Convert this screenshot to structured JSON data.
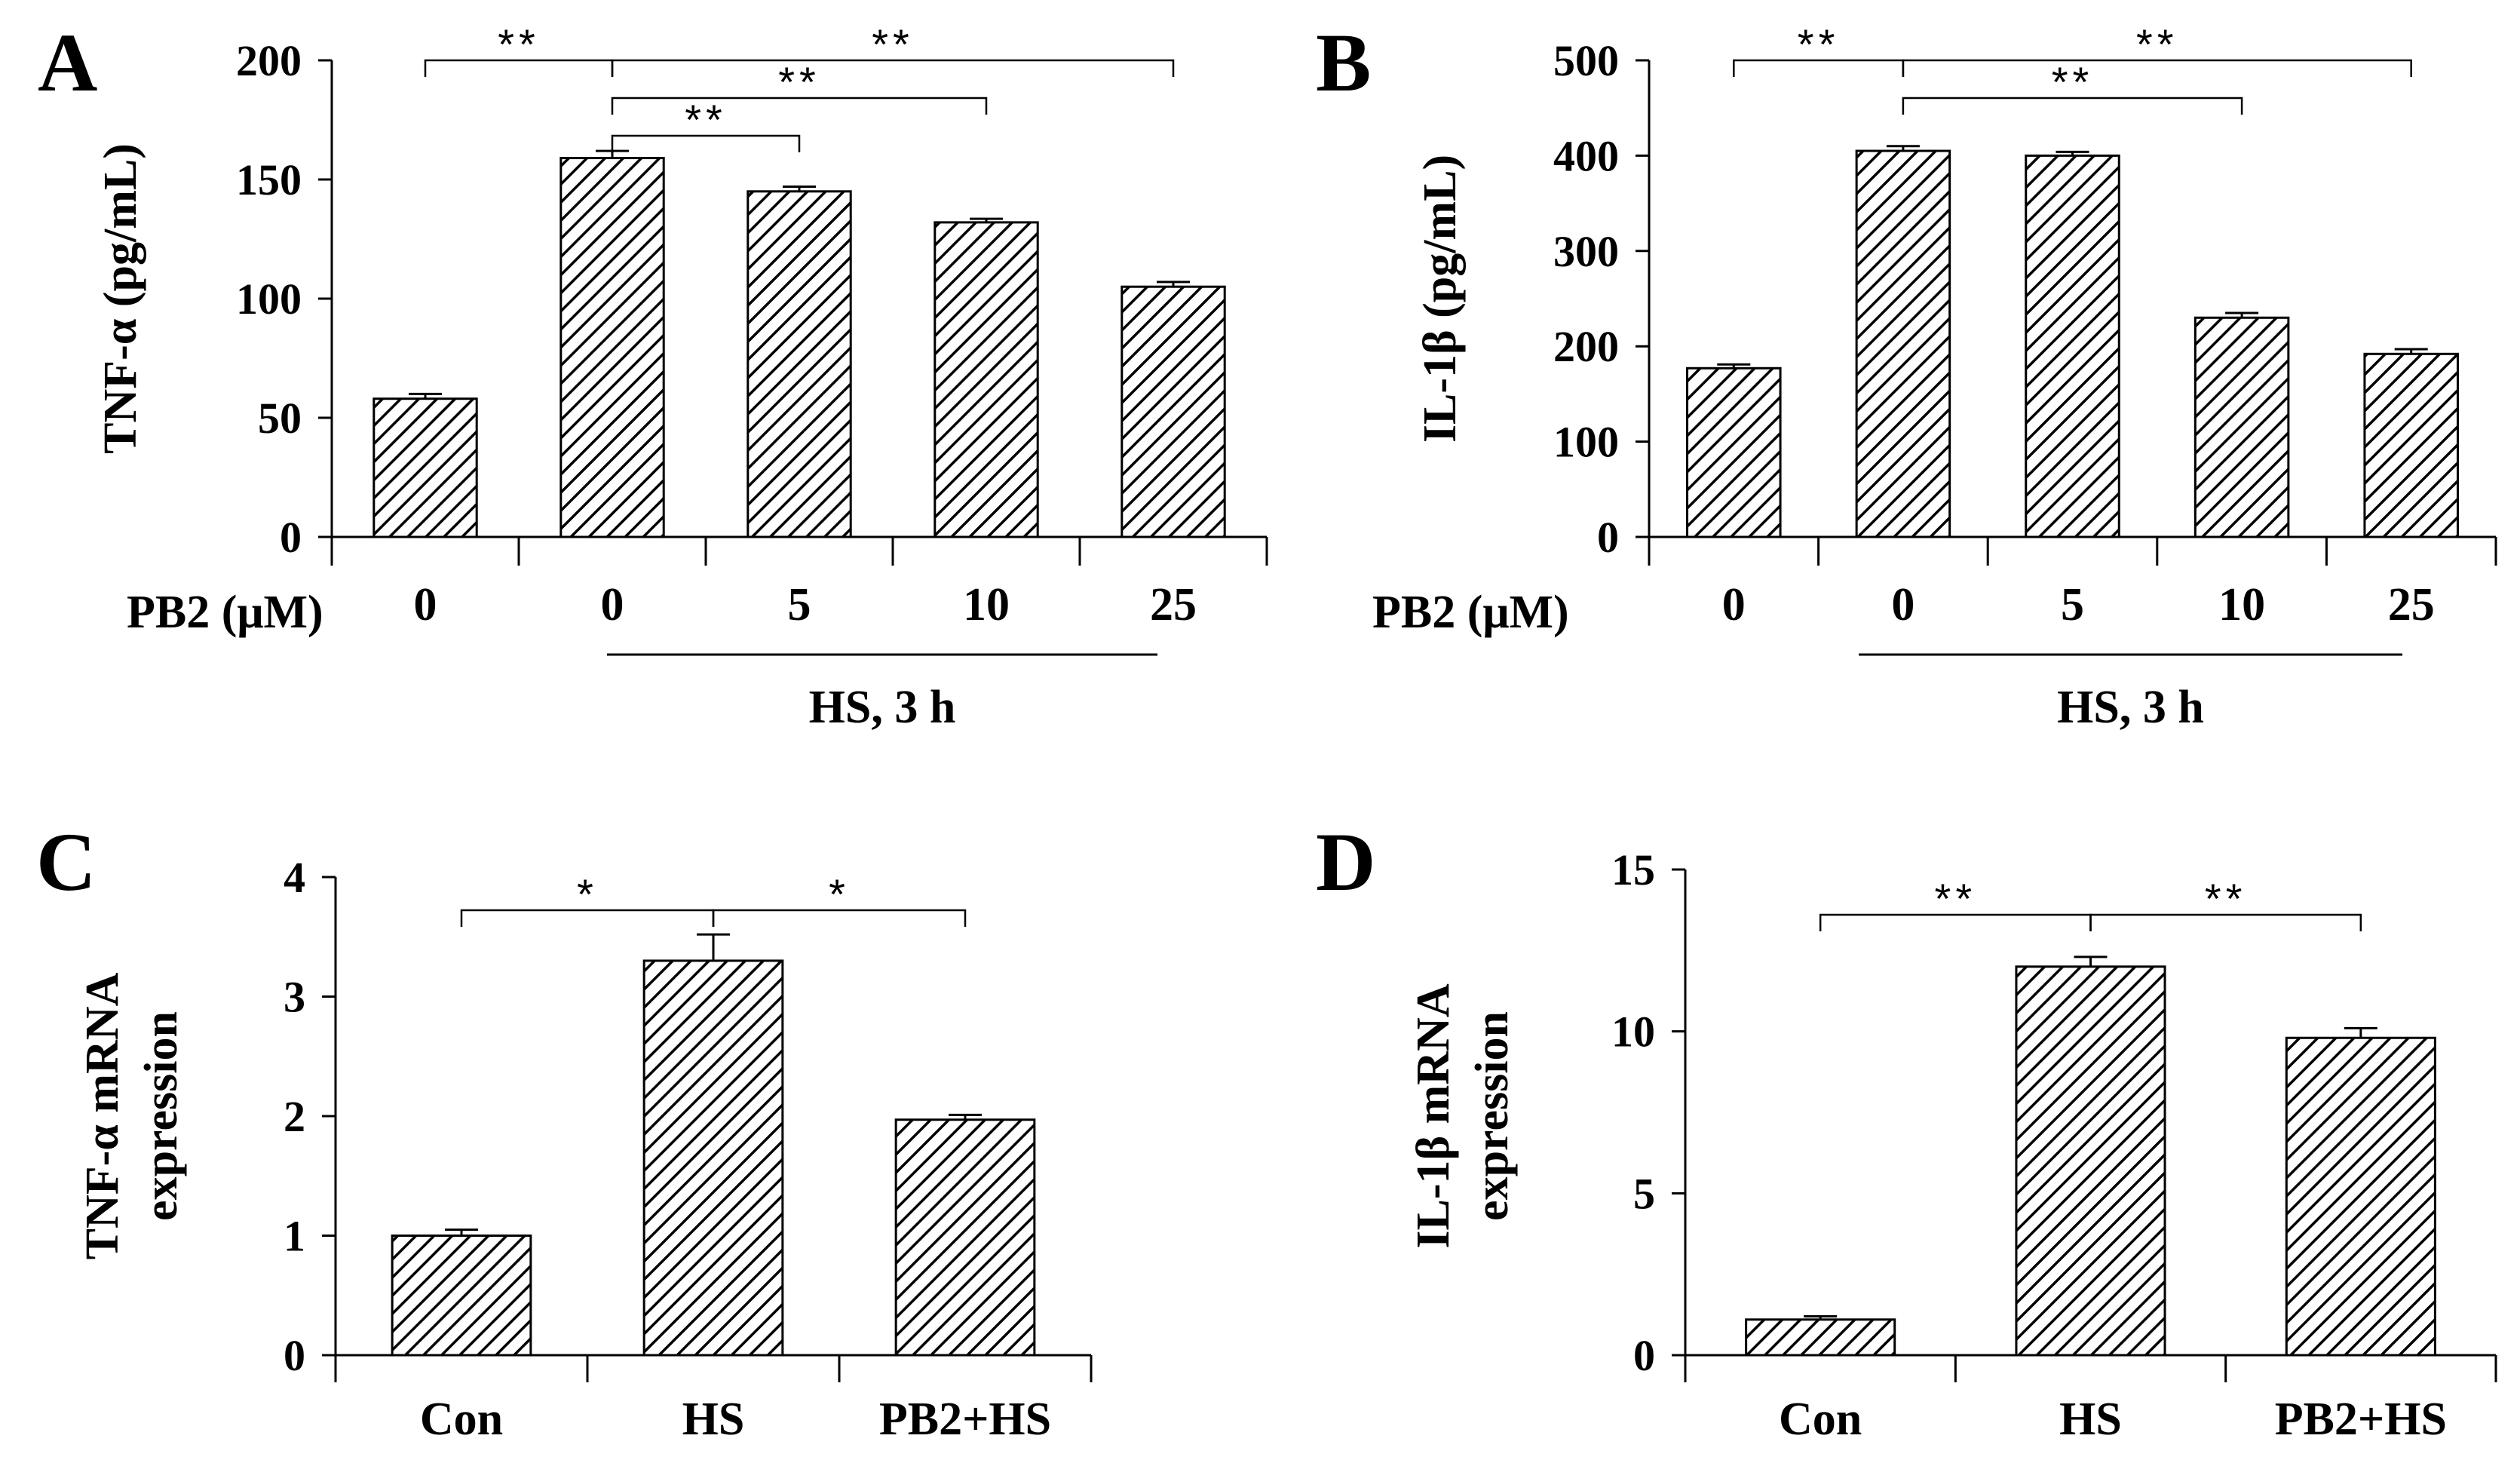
{
  "chart_data": [
    {
      "panel": "A",
      "type": "bar",
      "ylabel": "TNF-α (pg/mL)",
      "ylim": [
        0,
        200
      ],
      "yticks": [
        0,
        50,
        100,
        150,
        200
      ],
      "x_prefix_label": "PB2 (μM)",
      "categories": [
        "0",
        "0",
        "5",
        "10",
        "25"
      ],
      "values": [
        58,
        159,
        145,
        132,
        105
      ],
      "errors": [
        2,
        3,
        2,
        1.5,
        2
      ],
      "pattern": "diagonal-hatch",
      "treatment_label": "HS, 3 h",
      "treatment_span": [
        1,
        4
      ],
      "significance": [
        {
          "from": 0,
          "to": 1,
          "label": "**",
          "level": 0
        },
        {
          "from": 1,
          "to": 4,
          "label": "**",
          "level": 0
        },
        {
          "from": 1,
          "to": 3,
          "label": "**",
          "level": 1
        },
        {
          "from": 1,
          "to": 2,
          "label": "**",
          "level": 2
        }
      ]
    },
    {
      "panel": "B",
      "type": "bar",
      "ylabel": "IL-1β (pg/mL)",
      "ylim": [
        0,
        500
      ],
      "yticks": [
        0,
        100,
        200,
        300,
        400,
        500
      ],
      "x_prefix_label": "PB2 (μM)",
      "categories": [
        "0",
        "0",
        "5",
        "10",
        "25"
      ],
      "values": [
        177,
        405,
        400,
        230,
        192
      ],
      "errors": [
        4,
        5,
        4,
        5,
        5
      ],
      "pattern": "diagonal-hatch",
      "treatment_label": "HS, 3 h",
      "treatment_span": [
        1,
        4
      ],
      "significance": [
        {
          "from": 0,
          "to": 1,
          "label": "**",
          "level": 0
        },
        {
          "from": 1,
          "to": 4,
          "label": "**",
          "level": 0
        },
        {
          "from": 1,
          "to": 3,
          "label": "**",
          "level": 1
        }
      ]
    },
    {
      "panel": "C",
      "type": "bar",
      "ylabel_lines": [
        "TNF-α mRNA",
        "expression"
      ],
      "ylim": [
        0,
        4
      ],
      "yticks": [
        0,
        1,
        2,
        3,
        4
      ],
      "categories": [
        "Con",
        "HS",
        "PB2+HS"
      ],
      "values": [
        1.0,
        3.3,
        1.97
      ],
      "errors": [
        0.05,
        0.22,
        0.04
      ],
      "pattern": "diagonal-hatch",
      "significance": [
        {
          "from": 0,
          "to": 1,
          "label": "*",
          "level": 0
        },
        {
          "from": 1,
          "to": 2,
          "label": "*",
          "level": 0
        }
      ]
    },
    {
      "panel": "D",
      "type": "bar",
      "ylabel_lines": [
        "IL-1β mRNA",
        "expression"
      ],
      "ylim": [
        0,
        15
      ],
      "yticks": [
        0,
        5,
        10,
        15
      ],
      "categories": [
        "Con",
        "HS",
        "PB2+HS"
      ],
      "values": [
        1.1,
        12.0,
        9.8
      ],
      "errors": [
        0.1,
        0.3,
        0.3
      ],
      "pattern": "diagonal-hatch",
      "significance": [
        {
          "from": 0,
          "to": 1,
          "label": "**",
          "level": 0
        },
        {
          "from": 1,
          "to": 2,
          "label": "**",
          "level": 0
        }
      ]
    }
  ]
}
